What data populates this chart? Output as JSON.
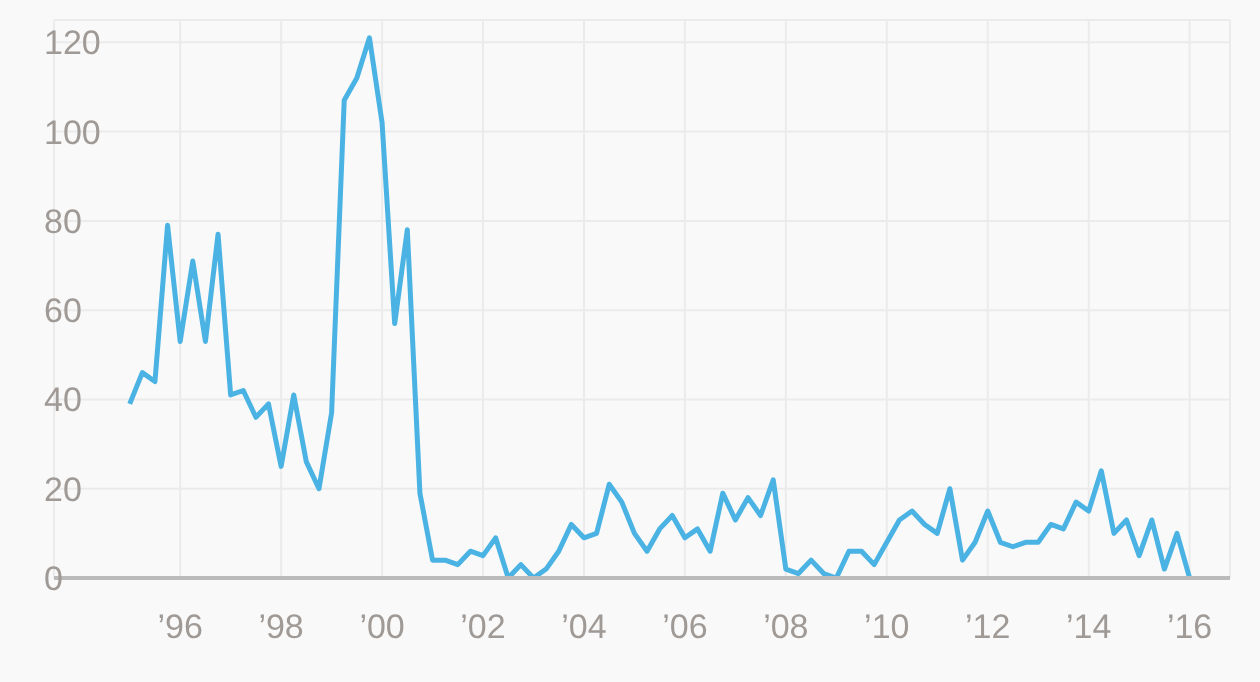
{
  "chart_data": {
    "type": "line",
    "x": [
      1995,
      1995.25,
      1995.5,
      1995.75,
      1996,
      1996.25,
      1996.5,
      1996.75,
      1997,
      1997.25,
      1997.5,
      1997.75,
      1998,
      1998.25,
      1998.5,
      1998.75,
      1999,
      1999.25,
      1999.5,
      1999.75,
      2000,
      2000.25,
      2000.5,
      2000.75,
      2001,
      2001.25,
      2001.5,
      2001.75,
      2002,
      2002.25,
      2002.5,
      2002.75,
      2003,
      2003.25,
      2003.5,
      2003.75,
      2004,
      2004.25,
      2004.5,
      2004.75,
      2005,
      2005.25,
      2005.5,
      2005.75,
      2006,
      2006.25,
      2006.5,
      2006.75,
      2007,
      2007.25,
      2007.5,
      2007.75,
      2008,
      2008.25,
      2008.5,
      2008.75,
      2009,
      2009.25,
      2009.5,
      2009.75,
      2010,
      2010.25,
      2010.5,
      2010.75,
      2011,
      2011.25,
      2011.5,
      2011.75,
      2012,
      2012.25,
      2012.5,
      2012.75,
      2013,
      2013.25,
      2013.5,
      2013.75,
      2014,
      2014.25,
      2014.5,
      2014.75,
      2015,
      2015.25,
      2015.5,
      2015.75,
      2016
    ],
    "series": [
      {
        "color": "#4ab3e3",
        "values": [
          39,
          46,
          44,
          79,
          53,
          71,
          53,
          77,
          41,
          42,
          36,
          39,
          25,
          41,
          26,
          20,
          37,
          107,
          112,
          121,
          102,
          57,
          78,
          19,
          4,
          4,
          3,
          6,
          5,
          9,
          0,
          3,
          0,
          2,
          6,
          12,
          9,
          10,
          21,
          17,
          10,
          6,
          11,
          14,
          9,
          11,
          6,
          19,
          13,
          18,
          14,
          22,
          2,
          1,
          4,
          1,
          0,
          6,
          6,
          3,
          8,
          13,
          15,
          12,
          10,
          20,
          4,
          8,
          15,
          8,
          7,
          8,
          8,
          12,
          11,
          17,
          15,
          24,
          10,
          13,
          5,
          13,
          2,
          10,
          0
        ]
      }
    ],
    "xlim": [
      1993.5,
      2016.8
    ],
    "xticks": [
      {
        "value": 1996,
        "label": "’96"
      },
      {
        "value": 1998,
        "label": "’98"
      },
      {
        "value": 2000,
        "label": "’00"
      },
      {
        "value": 2002,
        "label": "’02"
      },
      {
        "value": 2004,
        "label": "’04"
      },
      {
        "value": 2006,
        "label": "’06"
      },
      {
        "value": 2008,
        "label": "’08"
      },
      {
        "value": 2010,
        "label": "’10"
      },
      {
        "value": 2012,
        "label": "’12"
      },
      {
        "value": 2014,
        "label": "’14"
      },
      {
        "value": 2016,
        "label": "’16"
      }
    ],
    "ylim": [
      0,
      125
    ],
    "yticks": [
      0,
      20,
      40,
      60,
      80,
      100,
      120
    ],
    "grid": true,
    "marker": "none",
    "line_style": "solid"
  }
}
